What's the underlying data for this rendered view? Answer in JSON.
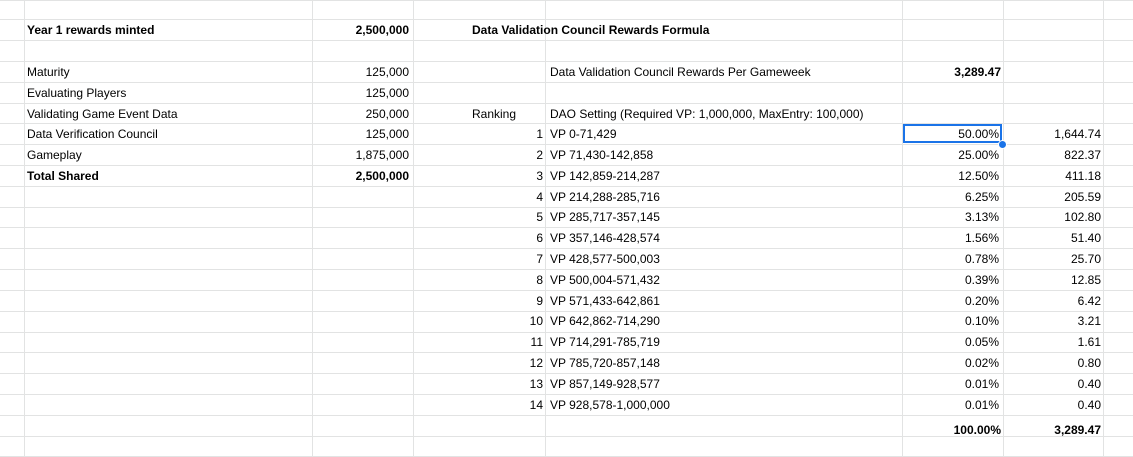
{
  "summary": {
    "title": "Year 1 rewards minted",
    "title_value": "2,500,000",
    "rows": [
      {
        "label": "Maturity",
        "value": "125,000"
      },
      {
        "label": "Evaluating Players",
        "value": "125,000"
      },
      {
        "label": "Validating Game Event Data",
        "value": "250,000"
      },
      {
        "label": "Data Verification Council",
        "value": "125,000"
      },
      {
        "label": "Gameplay",
        "value": "1,875,000"
      }
    ],
    "total_label": "Total Shared",
    "total_value": "2,500,000"
  },
  "formula": {
    "title": "Data Validation Council Rewards Formula",
    "per_gameweek_label": "Data Validation Council Rewards Per Gameweek",
    "per_gameweek_value": "3,289.47",
    "ranking_header": "Ranking",
    "setting_header": "DAO Setting (Required VP: 1,000,000, MaxEntry: 100,000)",
    "rows": [
      {
        "rank": "1",
        "vp": "VP 0-71,429",
        "pct": "50.00%",
        "reward": "1,644.74"
      },
      {
        "rank": "2",
        "vp": "VP 71,430-142,858",
        "pct": "25.00%",
        "reward": "822.37"
      },
      {
        "rank": "3",
        "vp": "VP 142,859-214,287",
        "pct": "12.50%",
        "reward": "411.18"
      },
      {
        "rank": "4",
        "vp": "VP 214,288-285,716",
        "pct": "6.25%",
        "reward": "205.59"
      },
      {
        "rank": "5",
        "vp": "VP 285,717-357,145",
        "pct": "3.13%",
        "reward": "102.80"
      },
      {
        "rank": "6",
        "vp": "VP 357,146-428,574",
        "pct": "1.56%",
        "reward": "51.40"
      },
      {
        "rank": "7",
        "vp": "VP 428,577-500,003",
        "pct": "0.78%",
        "reward": "25.70"
      },
      {
        "rank": "8",
        "vp": "VP 500,004-571,432",
        "pct": "0.39%",
        "reward": "12.85"
      },
      {
        "rank": "9",
        "vp": "VP 571,433-642,861",
        "pct": "0.20%",
        "reward": "6.42"
      },
      {
        "rank": "10",
        "vp": "VP 642,862-714,290",
        "pct": "0.10%",
        "reward": "3.21"
      },
      {
        "rank": "11",
        "vp": "VP 714,291-785,719",
        "pct": "0.05%",
        "reward": "1.61"
      },
      {
        "rank": "12",
        "vp": "VP 785,720-857,148",
        "pct": "0.02%",
        "reward": "0.80"
      },
      {
        "rank": "13",
        "vp": "VP 857,149-928,577",
        "pct": "0.01%",
        "reward": "0.40"
      },
      {
        "rank": "14",
        "vp": "VP 928,578-1,000,000",
        "pct": "0.01%",
        "reward": "0.40"
      }
    ],
    "total_pct": "100.00%",
    "total_reward": "3,289.47"
  }
}
